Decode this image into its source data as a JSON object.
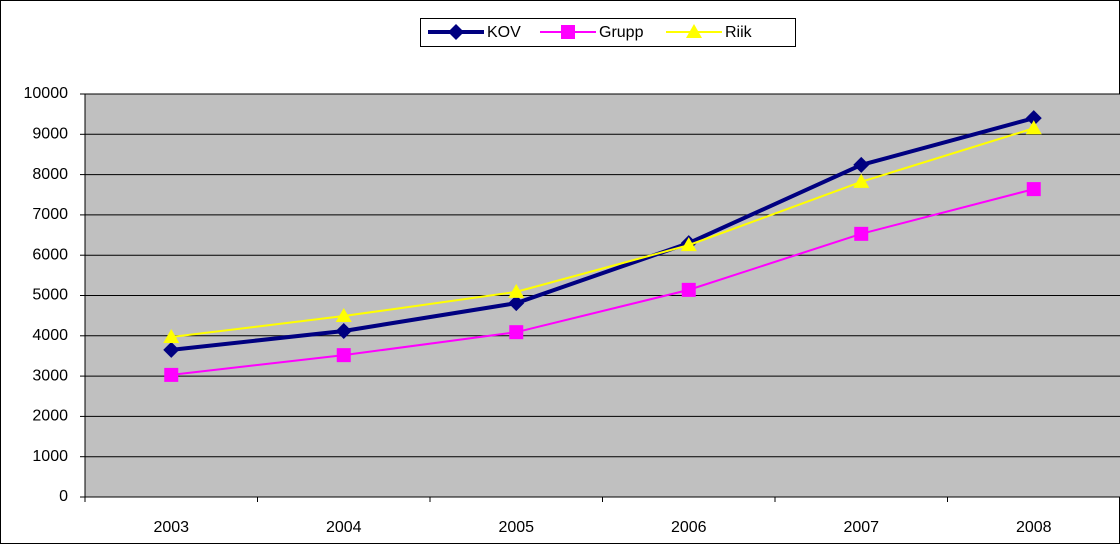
{
  "chart_data": {
    "type": "line",
    "categories": [
      "2003",
      "2004",
      "2005",
      "2006",
      "2007",
      "2008"
    ],
    "series": [
      {
        "name": "KOV",
        "color": "#000080",
        "marker": "diamond",
        "values": [
          3650,
          4120,
          4810,
          6300,
          8240,
          9400
        ]
      },
      {
        "name": "Grupp",
        "color": "#ff00ff",
        "marker": "square",
        "values": [
          3030,
          3520,
          4090,
          5140,
          6530,
          7640
        ]
      },
      {
        "name": "Riik",
        "color": "#ffff00",
        "marker": "triangle",
        "values": [
          3970,
          4490,
          5090,
          6250,
          7820,
          9150
        ]
      }
    ],
    "ylim": [
      0,
      10000
    ],
    "yticks": [
      0,
      1000,
      2000,
      3000,
      4000,
      5000,
      6000,
      7000,
      8000,
      9000,
      10000
    ],
    "grid": true,
    "legend": "top"
  }
}
